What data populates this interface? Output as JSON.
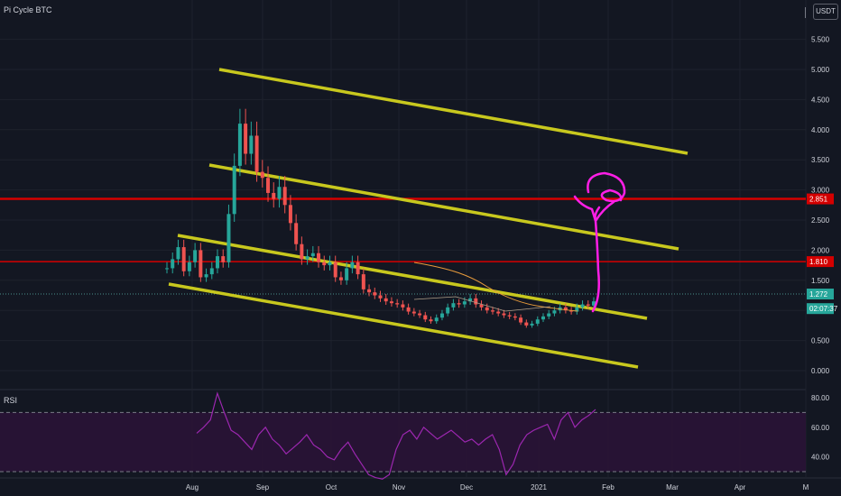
{
  "header": {
    "title": "Pi Cycle BTC",
    "currency": "USDT"
  },
  "rsi_panel": {
    "title": "RSI"
  },
  "colors": {
    "bg": "#131722",
    "grid": "#1e222d",
    "up": "#26a69a",
    "down": "#ef5350",
    "channel": "#c8c81e",
    "hline": "#d40000",
    "annotation": "#ff1ee6",
    "ma": "#e89b3c",
    "rsi_line": "#9c27b0",
    "rsi_band": "#2a1336"
  },
  "chart_data": [
    {
      "type": "candlestick",
      "title": "Pi Cycle BTC",
      "y_ticks": [
        0,
        0.5,
        1.0,
        1.5,
        2.0,
        2.5,
        3.0,
        3.5,
        4.0,
        4.5,
        5.0,
        5.5
      ],
      "y_tick_labels": [
        "0.000",
        "0.500",
        "1.000",
        "1.500",
        "2.000",
        "2.500",
        "3.000",
        "3.500",
        "4.000",
        "4.500",
        "5.000",
        "5.500"
      ],
      "x_tick_labels": [
        "Aug",
        "Sep",
        "Oct",
        "Nov",
        "Dec",
        "2021",
        "Feb",
        "Mar",
        "Apr",
        "M"
      ],
      "ylim": [
        -0.15,
        6.0
      ],
      "price_labels": [
        {
          "value": 2.851,
          "text": "2.851",
          "color": "#d40000"
        },
        {
          "value": 1.81,
          "text": "1.810",
          "color": "#d40000"
        },
        {
          "value": 1.272,
          "text": "1.272",
          "color": "#26a69a"
        },
        {
          "value": 1.03,
          "text": "02:07:37",
          "color": "#26a69a"
        }
      ],
      "horizontal_lines": [
        2.851,
        1.81
      ],
      "close_values": [
        1.7,
        1.85,
        2.05,
        1.65,
        1.8,
        2.0,
        1.55,
        1.6,
        1.7,
        1.9,
        1.8,
        2.6,
        3.4,
        4.1,
        3.6,
        3.9,
        3.3,
        3.2,
        2.95,
        2.85,
        3.05,
        2.75,
        2.45,
        2.1,
        1.85,
        1.9,
        1.95,
        1.8,
        1.75,
        1.8,
        1.55,
        1.5,
        1.7,
        1.8,
        1.6,
        1.35,
        1.3,
        1.25,
        1.2,
        1.15,
        1.12,
        1.1,
        1.05,
        0.98,
        0.95,
        0.92,
        0.85,
        0.82,
        0.88,
        0.95,
        1.05,
        1.12,
        1.1,
        1.15,
        1.2,
        1.1,
        1.05,
        1.0,
        0.98,
        0.95,
        0.92,
        0.9,
        0.88,
        0.8,
        0.75,
        0.78,
        0.85,
        0.9,
        0.95,
        1.0,
        1.05,
        1.0,
        0.98,
        1.05,
        1.1,
        1.08,
        1.15
      ]
    },
    {
      "type": "line",
      "title": "RSI",
      "y_ticks": [
        40,
        60,
        80
      ],
      "y_tick_labels": [
        "40.00",
        "60.00",
        "80.00"
      ],
      "ylim": [
        22,
        90
      ],
      "bands": [
        70,
        30
      ],
      "values": [
        56,
        60,
        65,
        83,
        70,
        58,
        55,
        50,
        45,
        55,
        60,
        52,
        48,
        42,
        46,
        50,
        55,
        48,
        45,
        40,
        38,
        45,
        50,
        42,
        35,
        28,
        26,
        25,
        28,
        45,
        55,
        58,
        52,
        60,
        56,
        52,
        55,
        58,
        54,
        50,
        52,
        48,
        52,
        55,
        45,
        28,
        35,
        48,
        55,
        58,
        60,
        62,
        52,
        65,
        70,
        60,
        65,
        68,
        72
      ]
    }
  ]
}
